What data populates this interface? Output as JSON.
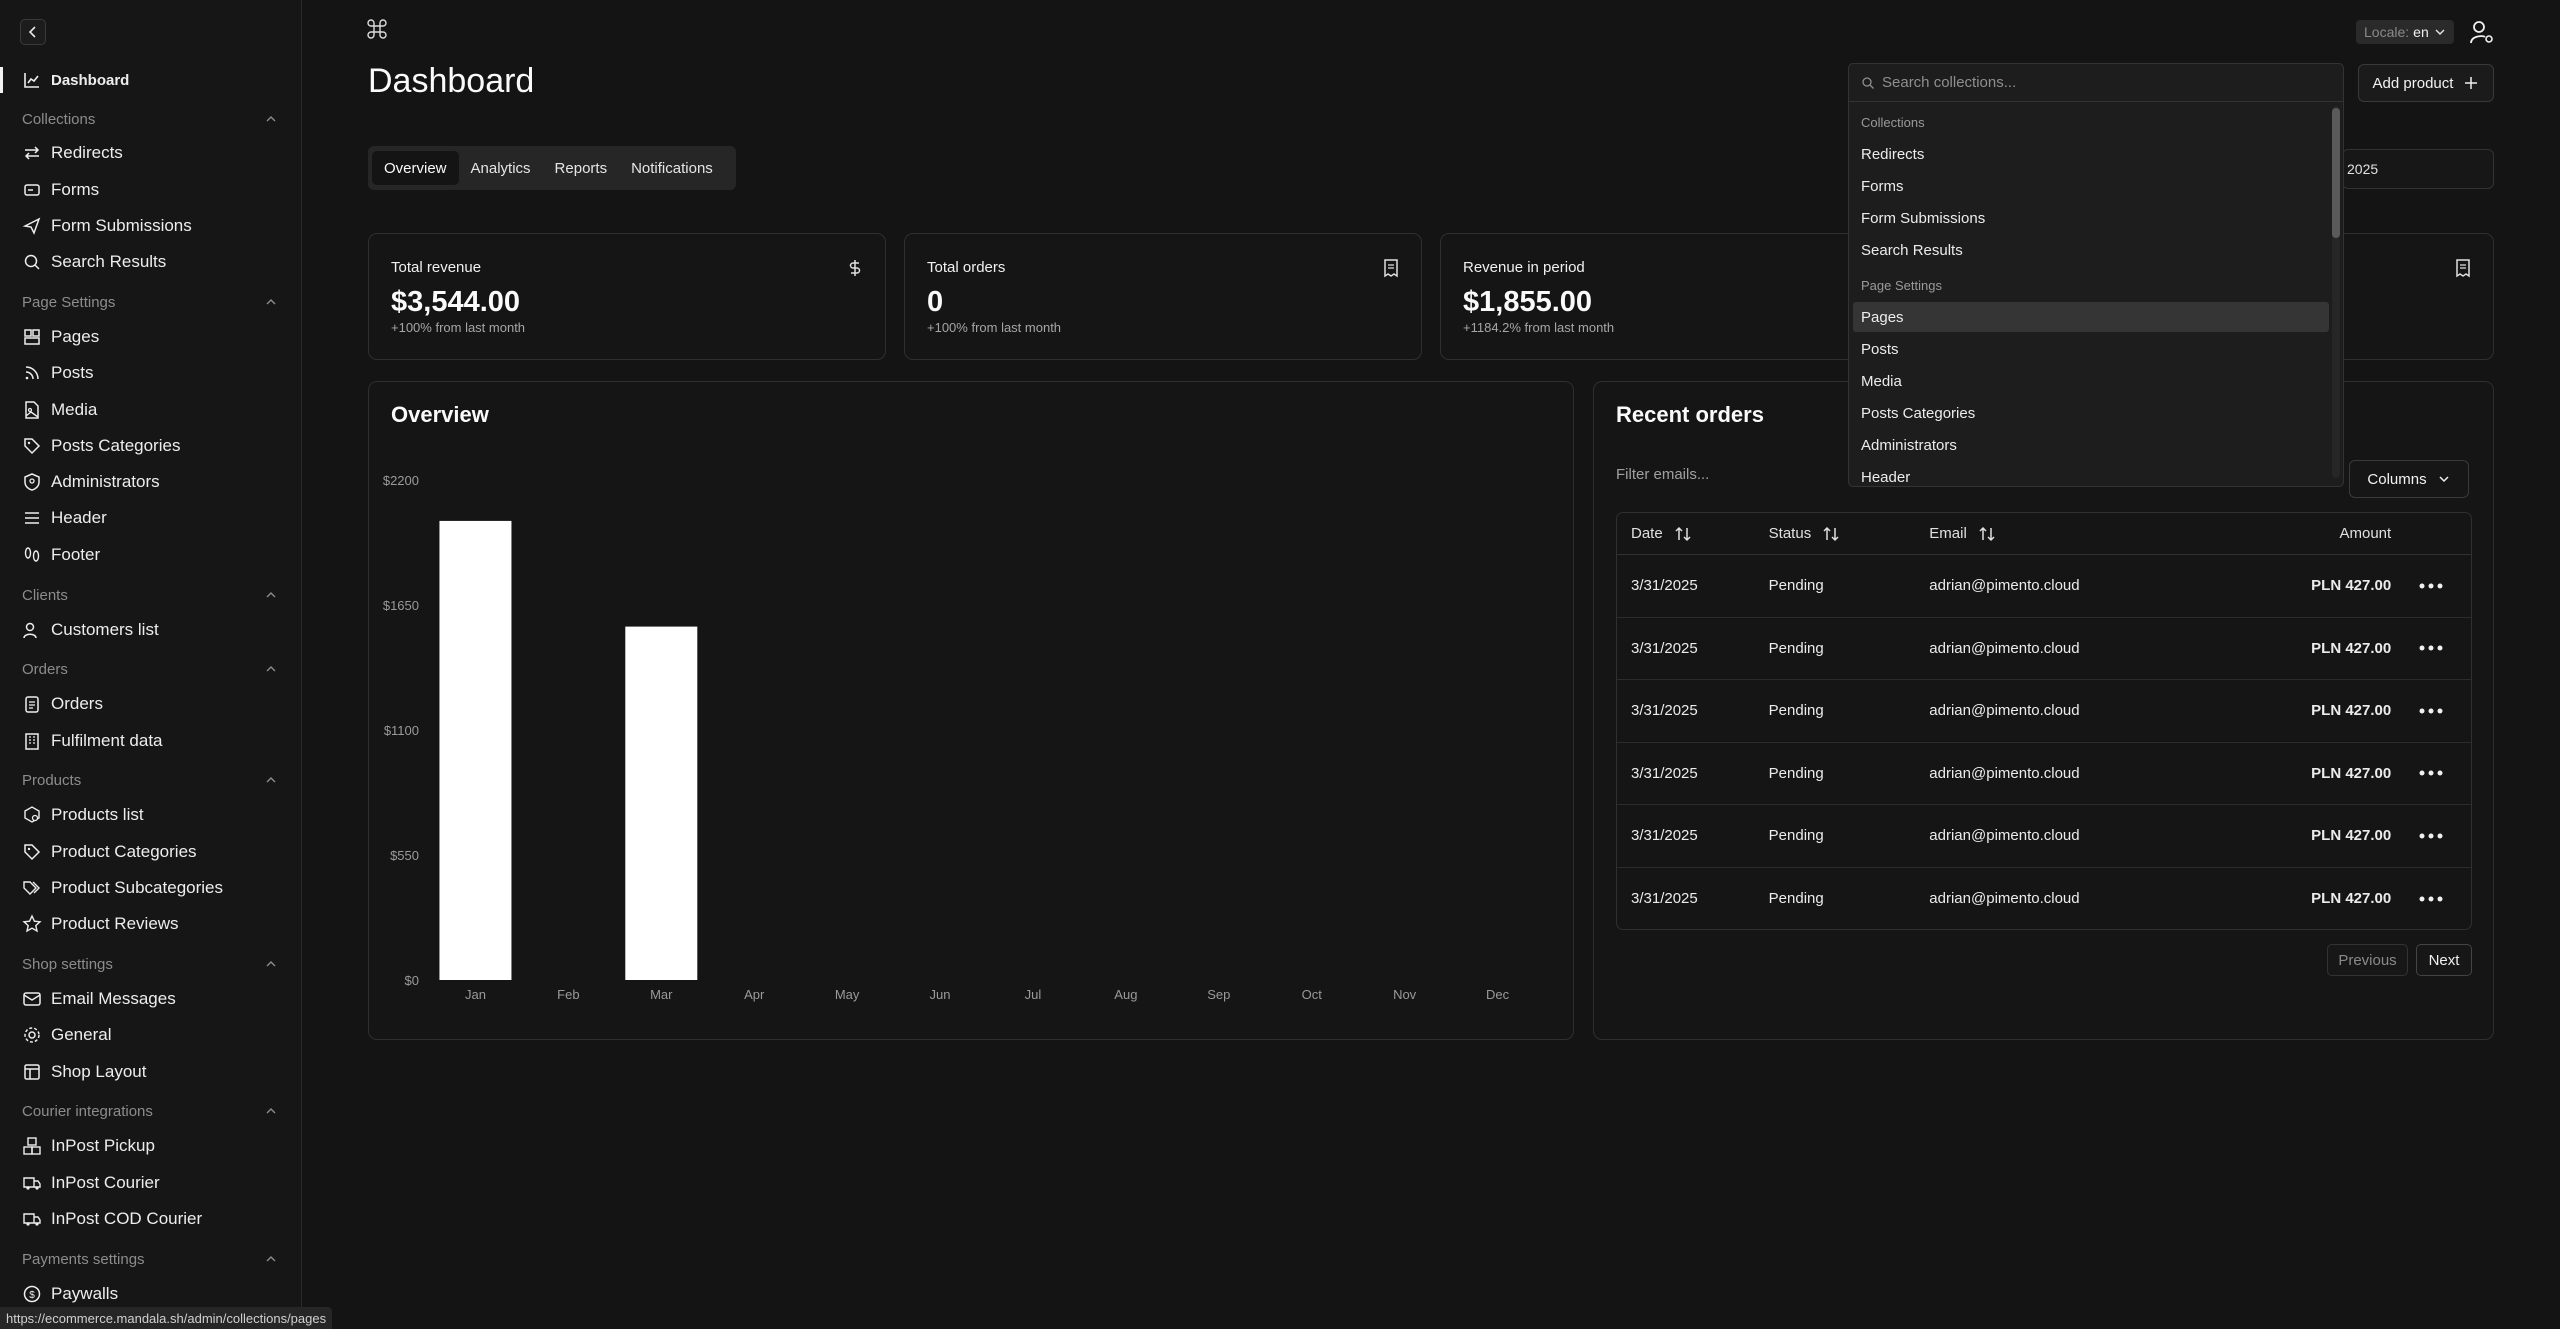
{
  "sidebar": {
    "active": "Dashboard",
    "groups": [
      {
        "label": "Collections"
      },
      {
        "label": "Page Settings"
      },
      {
        "label": "Clients"
      },
      {
        "label": "Orders"
      },
      {
        "label": "Products"
      },
      {
        "label": "Shop settings"
      },
      {
        "label": "Courier integrations"
      },
      {
        "label": "Payments settings"
      }
    ],
    "items": [
      {
        "label": "Redirects",
        "icon": "arrows-icon"
      },
      {
        "label": "Forms",
        "icon": "form-icon"
      },
      {
        "label": "Form Submissions",
        "icon": "send-icon"
      },
      {
        "label": "Search Results",
        "icon": "search-icon"
      },
      {
        "label": "Pages",
        "icon": "pages-icon"
      },
      {
        "label": "Posts",
        "icon": "rss-icon"
      },
      {
        "label": "Media",
        "icon": "image-file-icon"
      },
      {
        "label": "Posts Categories",
        "icon": "tag-icon"
      },
      {
        "label": "Administrators",
        "icon": "shield-user-icon"
      },
      {
        "label": "Header",
        "icon": "menu-icon"
      },
      {
        "label": "Footer",
        "icon": "footprint-icon"
      },
      {
        "label": "Customers list",
        "icon": "users-icon"
      },
      {
        "label": "Orders",
        "icon": "clipboard-icon"
      },
      {
        "label": "Fulfilment data",
        "icon": "building-icon"
      },
      {
        "label": "Products list",
        "icon": "box-search-icon"
      },
      {
        "label": "Product Categories",
        "icon": "tag-icon"
      },
      {
        "label": "Product Subcategories",
        "icon": "tags-icon"
      },
      {
        "label": "Product Reviews",
        "icon": "star-icon"
      },
      {
        "label": "Email Messages",
        "icon": "mail-icon"
      },
      {
        "label": "General",
        "icon": "gear-icon"
      },
      {
        "label": "Shop Layout",
        "icon": "layout-icon"
      },
      {
        "label": "InPost Pickup",
        "icon": "boxes-icon"
      },
      {
        "label": "InPost Courier",
        "icon": "truck-icon"
      },
      {
        "label": "InPost COD Courier",
        "icon": "truck-icon"
      },
      {
        "label": "Paywalls",
        "icon": "dollar-circle-icon"
      }
    ]
  },
  "header": {
    "title": "Dashboard",
    "locale_label": "Locale:",
    "locale_value": "en",
    "add_product": "Add product",
    "date_fragment": "2025"
  },
  "tabs": [
    "Overview",
    "Analytics",
    "Reports",
    "Notifications"
  ],
  "stats": [
    {
      "label": "Total revenue",
      "value": "$3,544.00",
      "sub": "+100% from last month",
      "icon": "dollar-icon"
    },
    {
      "label": "Total orders",
      "value": "0",
      "sub": "+100% from last month",
      "icon": "receipt-icon"
    },
    {
      "label": "Revenue in period",
      "value": "$1,855.00",
      "sub": "+1184.2% from last month",
      "icon": "receipt-icon"
    },
    {
      "label": "",
      "value": "",
      "sub": "",
      "icon": "receipt-icon"
    }
  ],
  "overview": {
    "title": "Overview"
  },
  "chart_data": {
    "type": "bar",
    "categories": [
      "Jan",
      "Feb",
      "Mar",
      "Apr",
      "May",
      "Jun",
      "Jul",
      "Aug",
      "Sep",
      "Oct",
      "Nov",
      "Dec"
    ],
    "values": [
      2020,
      0,
      1555,
      0,
      0,
      0,
      0,
      0,
      0,
      0,
      0,
      0
    ],
    "ylim": [
      0,
      2200
    ],
    "yticks": [
      "$0",
      "$550",
      "$1100",
      "$1650",
      "$2200"
    ],
    "bar_color": "#ffffff",
    "grid": false,
    "title": "",
    "xlabel": "",
    "ylabel": ""
  },
  "orders": {
    "title": "Recent orders",
    "filter_placeholder": "Filter emails...",
    "columns_label": "Columns",
    "headers": {
      "date": "Date",
      "status": "Status",
      "email": "Email",
      "amount": "Amount"
    },
    "rows": [
      {
        "date": "3/31/2025",
        "status": "Pending",
        "email": "adrian@pimento.cloud",
        "amount": "PLN 427.00"
      },
      {
        "date": "3/31/2025",
        "status": "Pending",
        "email": "adrian@pimento.cloud",
        "amount": "PLN 427.00"
      },
      {
        "date": "3/31/2025",
        "status": "Pending",
        "email": "adrian@pimento.cloud",
        "amount": "PLN 427.00"
      },
      {
        "date": "3/31/2025",
        "status": "Pending",
        "email": "adrian@pimento.cloud",
        "amount": "PLN 427.00"
      },
      {
        "date": "3/31/2025",
        "status": "Pending",
        "email": "adrian@pimento.cloud",
        "amount": "PLN 427.00"
      },
      {
        "date": "3/31/2025",
        "status": "Pending",
        "email": "adrian@pimento.cloud",
        "amount": "PLN 427.00"
      }
    ],
    "previous": "Previous",
    "next": "Next"
  },
  "command": {
    "placeholder": "Search collections...",
    "groups": [
      "Collections",
      "Page Settings"
    ],
    "items": [
      "Redirects",
      "Forms",
      "Form Submissions",
      "Search Results",
      "Pages",
      "Posts",
      "Media",
      "Posts Categories",
      "Administrators",
      "Header"
    ],
    "highlighted": "Pages"
  },
  "status_url": "https://ecommerce.mandala.sh/admin/collections/pages"
}
